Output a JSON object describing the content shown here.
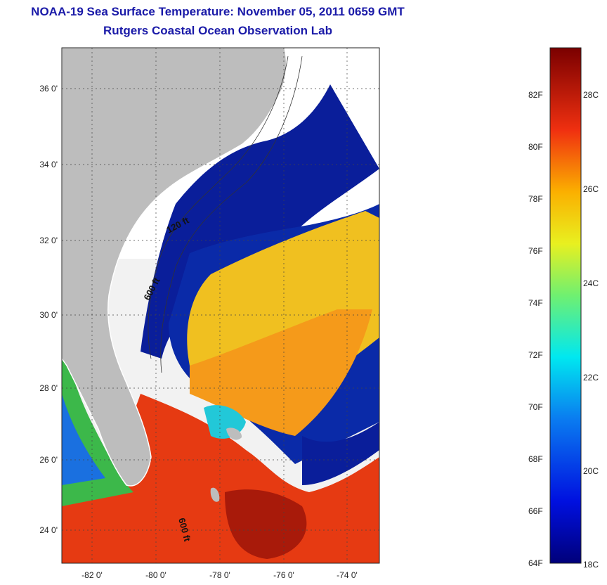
{
  "header": {
    "title": "NOAA-19 Sea Surface Temperature:  November 05, 2011 0659 GMT",
    "subtitle": "Rutgers Coastal Ocean Observation Lab"
  },
  "map": {
    "lat_labels": [
      "36 0'",
      "34 0'",
      "32 0'",
      "30 0'",
      "28 0'",
      "26 0'",
      "24 0'"
    ],
    "lon_labels": [
      "-82 0'",
      "-80 0'",
      "-78 0'",
      "-76 0'",
      "-74 0'"
    ],
    "contours": [
      "120 ft",
      "600 ft",
      "600 ft"
    ]
  },
  "colorbar": {
    "fahrenheit": [
      "82F",
      "80F",
      "78F",
      "76F",
      "74F",
      "72F",
      "70F",
      "68F",
      "66F",
      "64F"
    ],
    "celsius": [
      "28C",
      "26C",
      "24C",
      "22C",
      "20C",
      "18C"
    ]
  },
  "colors": {
    "title": "#1a1aa8",
    "land": "#bdbdbd",
    "clouds": "#ffffff",
    "cold": "#0a1e9a",
    "warm": "#e63a12"
  }
}
